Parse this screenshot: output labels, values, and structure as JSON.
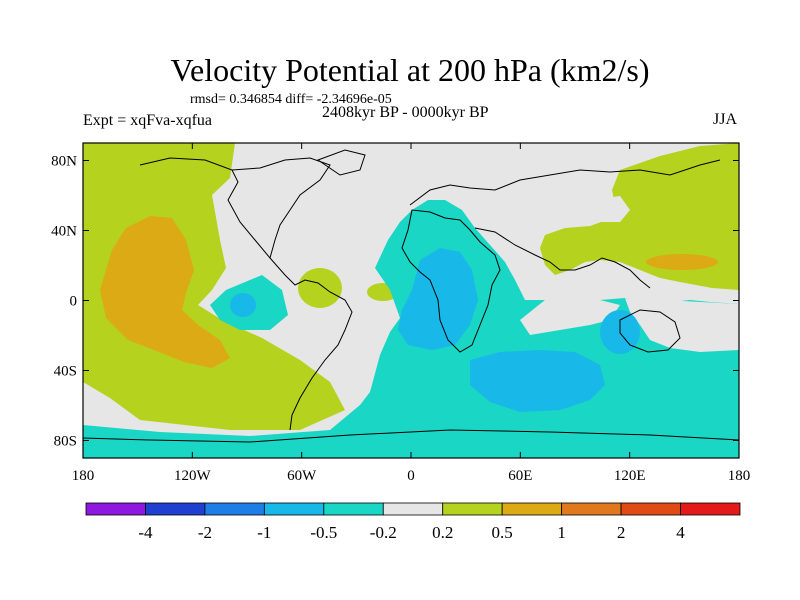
{
  "title": "Velocity Potential at 200 hPa (km2/s)",
  "stats": "rmsd= 0.346854 diff= -2.34696e-05",
  "expt": "Expt = xqFva-xqfua",
  "period": "2408kyr BP - 0000kyr BP",
  "season": "JJA",
  "axes": {
    "lat_labels": [
      "80N",
      "40N",
      "0",
      "40S",
      "80S"
    ],
    "lat_values": [
      80,
      40,
      0,
      -40,
      -80
    ],
    "lon_labels": [
      "180",
      "120W",
      "60W",
      "0",
      "60E",
      "120E",
      "180"
    ],
    "lon_values": [
      -180,
      -120,
      -60,
      0,
      60,
      120,
      180
    ],
    "lat_range": [
      -90,
      90
    ],
    "lon_range": [
      -180,
      180
    ]
  },
  "colorbar": {
    "labels": [
      "-4",
      "-2",
      "-1",
      "-0.5",
      "-0.2",
      "0.2",
      "0.5",
      "1",
      "2",
      "4"
    ],
    "colors": [
      "#8f18e0",
      "#1e3fd0",
      "#1e7ee8",
      "#18b8e8",
      "#1ad6c4",
      "#e6e6e6",
      "#b4d21e",
      "#dcaa14",
      "#e0781e",
      "#e04a14",
      "#e41a1a"
    ]
  },
  "colors": {
    "background": "#e6e6e6",
    "neg_02": "#1ad6c4",
    "neg_05": "#18b8e8",
    "pos_02": "#b4d21e",
    "pos_05": "#dcaa14"
  }
}
